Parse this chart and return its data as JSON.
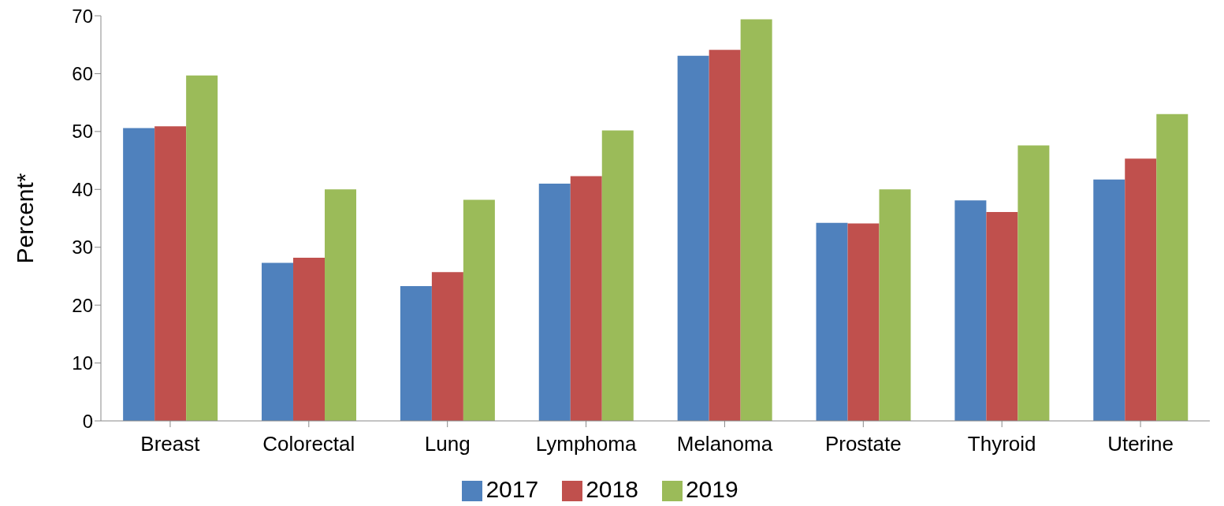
{
  "chart_data": {
    "type": "bar",
    "ylabel": "Percent*",
    "categories": [
      "Breast",
      "Colorectal",
      "Lung",
      "Lymphoma",
      "Melanoma",
      "Prostate",
      "Thyroid",
      "Uterine"
    ],
    "series": [
      {
        "name": "2017",
        "color": "#4f81bd",
        "values": [
          50.6,
          27.3,
          23.3,
          41.0,
          63.1,
          34.2,
          38.1,
          41.7
        ]
      },
      {
        "name": "2018",
        "color": "#c0504d",
        "values": [
          50.9,
          28.2,
          25.7,
          42.3,
          64.1,
          34.1,
          36.1,
          45.3
        ]
      },
      {
        "name": "2019",
        "color": "#9bbb59",
        "values": [
          59.7,
          40.0,
          38.2,
          50.2,
          69.4,
          40.0,
          47.6,
          53.0
        ]
      }
    ],
    "ylim": [
      0,
      70
    ],
    "yticks": [
      0,
      10,
      20,
      30,
      40,
      50,
      60,
      70
    ],
    "grid": false,
    "legend": "bottom"
  }
}
